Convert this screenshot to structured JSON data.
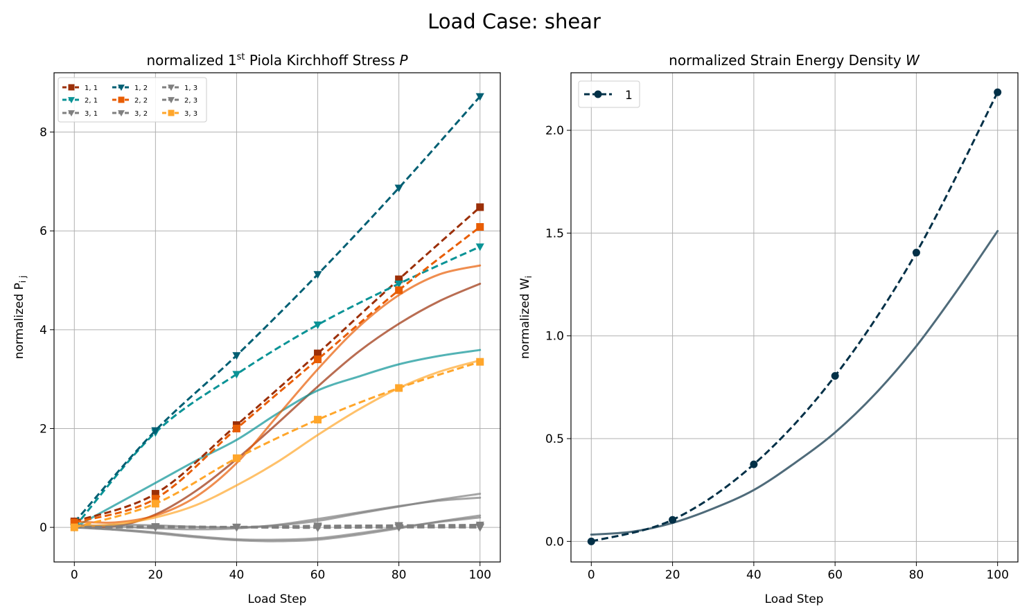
{
  "figure": {
    "suptitle": "Load Case: shear"
  },
  "chart_data": [
    {
      "type": "line",
      "title_text": "normalized 1",
      "title_sup": "st",
      "title_rest": " Piola Kirchhoff Stress ",
      "title_symbol": "P",
      "xlabel": "Load Step",
      "ylabel_text": "normalized P",
      "ylabel_sub": "i j",
      "xlim": [
        -5,
        105
      ],
      "ylim": [
        -0.7,
        9.2
      ],
      "xticks": [
        0,
        20,
        40,
        60,
        80,
        100
      ],
      "yticks": [
        0,
        2,
        4,
        6,
        8
      ],
      "grid": true,
      "legend_placement": "top-left",
      "legend_columns": 3,
      "series": [
        {
          "name": "1, 1",
          "color": "#9b2f08",
          "marker": "square",
          "x": [
            0,
            20,
            40,
            60,
            80,
            100
          ],
          "y": [
            0.12,
            0.68,
            2.07,
            3.52,
            5.02,
            6.48
          ],
          "fit": [
            0.05,
            0.02,
            0.26,
            0.74,
            1.38,
            2.1,
            2.85,
            3.55,
            4.12,
            4.58,
            4.93
          ]
        },
        {
          "name": "2, 1",
          "color": "#0a9396",
          "marker": "triangle-down",
          "x": [
            0,
            20,
            40,
            60,
            80,
            100
          ],
          "y": [
            0.0,
            1.92,
            3.1,
            4.1,
            4.93,
            5.68
          ],
          "fit": [
            0.0,
            0.45,
            0.9,
            1.35,
            1.77,
            2.3,
            2.77,
            3.05,
            3.3,
            3.47,
            3.59
          ]
        },
        {
          "name": "3, 1",
          "color": "#7f7f7f",
          "marker": "triangle-down",
          "x": [
            0,
            20,
            40,
            60,
            80,
            100
          ],
          "y": [
            0.0,
            0.0,
            0.0,
            0.0,
            0.0,
            0.0
          ],
          "fit": [
            0.0,
            -0.04,
            -0.1,
            -0.18,
            -0.24,
            -0.25,
            -0.22,
            -0.12,
            0.0,
            0.11,
            0.2
          ]
        },
        {
          "name": "1, 2",
          "color": "#005f73",
          "marker": "triangle-down",
          "x": [
            0,
            20,
            40,
            60,
            80,
            100
          ],
          "y": [
            0.1,
            1.96,
            3.48,
            5.12,
            6.87,
            8.72
          ],
          "fit": null
        },
        {
          "name": "2, 2",
          "color": "#e85d04",
          "marker": "square",
          "x": [
            0,
            20,
            40,
            60,
            80,
            100
          ],
          "y": [
            0.1,
            0.58,
            2.0,
            3.4,
            4.8,
            6.08
          ],
          "fit": [
            0.12,
            0.1,
            0.24,
            0.62,
            1.3,
            2.25,
            3.2,
            4.05,
            4.7,
            5.12,
            5.3
          ]
        },
        {
          "name": "3, 2",
          "color": "#7f7f7f",
          "marker": "triangle-down",
          "x": [
            0,
            20,
            40,
            60,
            80,
            100
          ],
          "y": [
            0.0,
            0.02,
            0.01,
            0.03,
            0.04,
            0.05
          ],
          "fit": [
            0.0,
            -0.05,
            -0.12,
            -0.2,
            -0.26,
            -0.28,
            -0.25,
            -0.15,
            -0.02,
            0.12,
            0.24
          ]
        },
        {
          "name": "1, 3",
          "color": "#7f7f7f",
          "marker": "triangle-down",
          "x": [
            0,
            20,
            40,
            60,
            80,
            100
          ],
          "y": [
            0.0,
            0.0,
            0.0,
            -0.01,
            0.0,
            0.0
          ],
          "fit": [
            0.05,
            0.02,
            -0.02,
            -0.04,
            -0.02,
            0.05,
            0.17,
            0.3,
            0.43,
            0.54,
            0.6
          ]
        },
        {
          "name": "2, 3",
          "color": "#7f7f7f",
          "marker": "triangle-down",
          "x": [
            0,
            20,
            40,
            60,
            80,
            100
          ],
          "y": [
            0.0,
            0.02,
            0.0,
            0.02,
            0.03,
            0.02
          ],
          "fit": [
            0.0,
            0.05,
            0.04,
            0.01,
            0.0,
            0.04,
            0.13,
            0.28,
            0.42,
            0.56,
            0.68
          ]
        },
        {
          "name": "3, 3",
          "color": "#ffa62b",
          "marker": "square",
          "x": [
            0,
            20,
            40,
            60,
            80,
            100
          ],
          "y": [
            0.0,
            0.48,
            1.4,
            2.18,
            2.82,
            3.35
          ],
          "fit": [
            0.02,
            0.06,
            0.2,
            0.45,
            0.85,
            1.32,
            1.87,
            2.38,
            2.82,
            3.15,
            3.38
          ]
        }
      ]
    },
    {
      "type": "line",
      "title_text": "normalized Strain Energy Density ",
      "title_symbol": "W",
      "xlabel": "Load Step",
      "ylabel_text": "normalized W",
      "ylabel_sub": "i",
      "xlim": [
        -5,
        105
      ],
      "ylim": [
        -0.1,
        2.28
      ],
      "xticks": [
        0,
        20,
        40,
        60,
        80,
        100
      ],
      "yticks": [
        0.0,
        0.5,
        1.0,
        1.5,
        2.0
      ],
      "ytick_labels": [
        "0.0",
        "0.5",
        "1.0",
        "1.5",
        "2.0"
      ],
      "grid": true,
      "legend_placement": "top-left",
      "series": [
        {
          "name": "1",
          "color": "#023047",
          "marker": "circle",
          "x": [
            0,
            20,
            40,
            60,
            80,
            100
          ],
          "y": [
            0.0,
            0.105,
            0.375,
            0.805,
            1.405,
            2.185
          ],
          "fit_color": "#4f6b7a",
          "fit": [
            0.033,
            0.047,
            0.09,
            0.16,
            0.25,
            0.38,
            0.53,
            0.72,
            0.95,
            1.22,
            1.51
          ]
        }
      ]
    }
  ]
}
